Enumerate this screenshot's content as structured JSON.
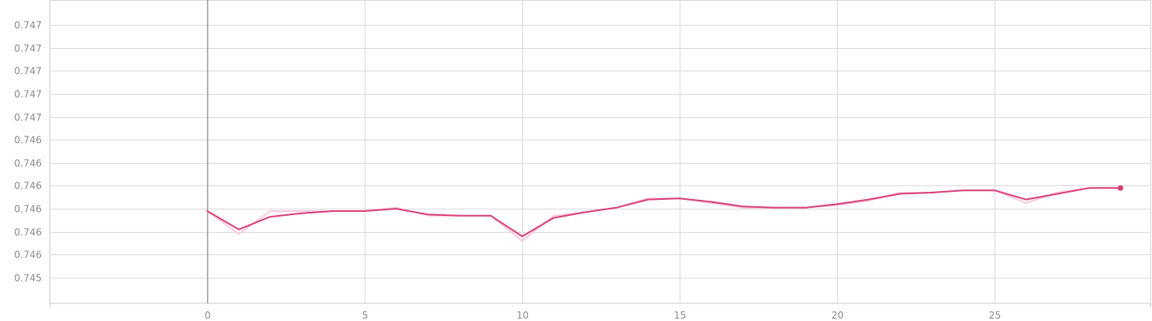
{
  "chart_data": {
    "type": "line",
    "title": "",
    "xlabel": "",
    "ylabel": "",
    "xlim": [
      -5,
      29.5
    ],
    "ylim": [
      0.74475,
      0.74715
    ],
    "x_ticks": [
      0,
      5,
      10,
      15,
      20,
      25
    ],
    "y_ticks": [
      {
        "value": 0.745,
        "label": "0.745"
      },
      {
        "value": 0.7452,
        "label": "0.746"
      },
      {
        "value": 0.7454,
        "label": "0.746"
      },
      {
        "value": 0.7456,
        "label": "0.746"
      },
      {
        "value": 0.7458,
        "label": "0.746"
      },
      {
        "value": 0.746,
        "label": "0.746"
      },
      {
        "value": 0.7462,
        "label": "0.746"
      },
      {
        "value": 0.7464,
        "label": "0.747"
      },
      {
        "value": 0.7466,
        "label": "0.747"
      },
      {
        "value": 0.7468,
        "label": "0.747"
      },
      {
        "value": 0.747,
        "label": "0.747"
      },
      {
        "value": 0.7472,
        "label": "0.747"
      }
    ],
    "grid": true,
    "series": [
      {
        "role": "raw",
        "color": "#f9c9dc",
        "x": [
          0,
          1,
          2,
          3,
          4,
          5,
          6,
          7,
          8,
          9,
          10,
          11,
          12,
          13,
          14,
          15,
          16,
          17,
          18,
          19,
          20,
          21,
          22,
          23,
          24,
          25,
          26,
          27,
          28,
          29
        ],
        "y": [
          0.74558,
          0.74538,
          0.74558,
          0.74558,
          0.74558,
          0.74558,
          0.74561,
          0.74554,
          0.74554,
          0.74554,
          0.74532,
          0.74554,
          0.74557,
          0.74561,
          0.74569,
          0.74569,
          0.74565,
          0.74561,
          0.74561,
          0.74561,
          0.74563,
          0.74567,
          0.74574,
          0.74574,
          0.74576,
          0.74576,
          0.74565,
          0.74574,
          0.74578,
          0.74578
        ]
      },
      {
        "role": "smoothed",
        "color": "#d9407a",
        "x": [
          0,
          1,
          2,
          3,
          4,
          5,
          6,
          7,
          8,
          9,
          10,
          11,
          12,
          13,
          14,
          15,
          16,
          17,
          18,
          19,
          20,
          21,
          22,
          23,
          24,
          25,
          26,
          27,
          28,
          29
        ],
        "y": [
          0.74558,
          0.74542,
          0.74553,
          0.74556,
          0.74558,
          0.74558,
          0.7456,
          0.74555,
          0.74554,
          0.74554,
          0.74536,
          0.74552,
          0.74557,
          0.74561,
          0.74568,
          0.74569,
          0.74566,
          0.74562,
          0.74561,
          0.74561,
          0.74564,
          0.74568,
          0.74573,
          0.74574,
          0.74576,
          0.74576,
          0.74568,
          0.74573,
          0.74578,
          0.74578
        ]
      }
    ]
  }
}
